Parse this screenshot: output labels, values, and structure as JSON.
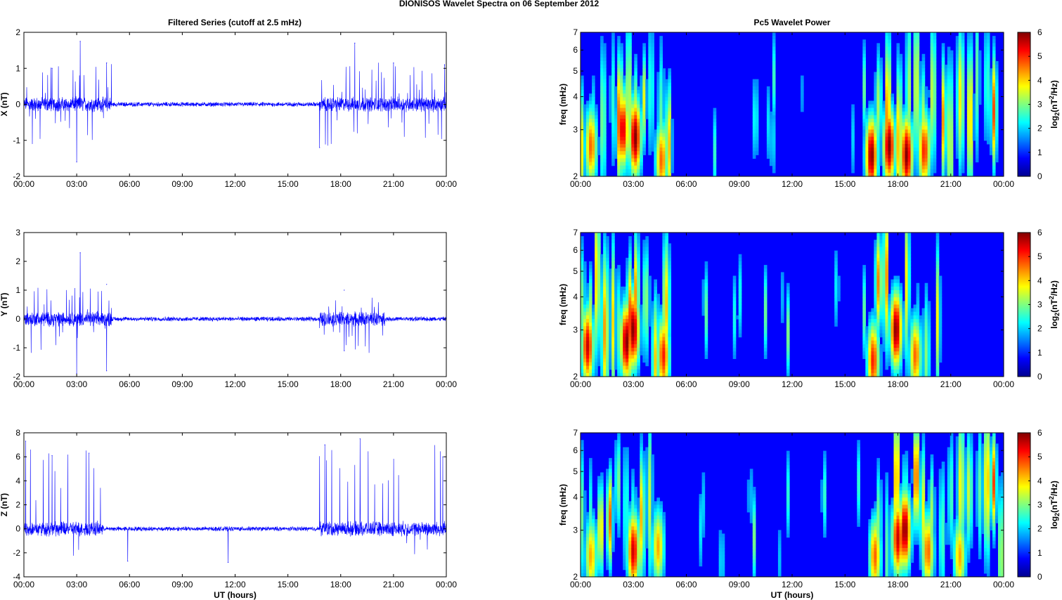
{
  "figure": {
    "suptitle": "DIONISOS Wavelet Spectra on 06 September 2012",
    "left_title": "Filtered Series (cutoff at 2.5 mHz)",
    "right_title": "Pc5 Wavelet Power",
    "xlabel": "UT (hours)",
    "time_ticks": [
      "00:00",
      "03:00",
      "06:00",
      "09:00",
      "12:00",
      "15:00",
      "18:00",
      "21:00",
      "00:00"
    ],
    "freq_ylabel": "freq (mHz)",
    "freq_ticks": [
      "2",
      "3",
      "4",
      "5",
      "6",
      "7"
    ],
    "colorbar_ticks": [
      "0",
      "1",
      "2",
      "3",
      "4",
      "5",
      "6"
    ],
    "colorbar_label": "log2(nT2/Hz)",
    "line_color": "#0000ff"
  },
  "chart_data": [
    {
      "type": "line",
      "ylabel": "X (nT)",
      "ylim": [
        -2,
        2
      ],
      "yticks": [
        "-2",
        "-1",
        "0",
        "1",
        "2"
      ],
      "xlim_hours": [
        0,
        24
      ],
      "activity_windows_hours": [
        [
          0.0,
          5.0
        ],
        [
          16.8,
          24.0
        ]
      ],
      "notable_peaks": [
        {
          "x": 1.6,
          "y": 1.0
        },
        {
          "x": 3.2,
          "y": 1.75
        },
        {
          "x": 3.0,
          "y": -1.6
        },
        {
          "x": 4.7,
          "y": 1.15
        },
        {
          "x": 16.8,
          "y": -1.2
        },
        {
          "x": 18.8,
          "y": 1.7
        },
        {
          "x": 21.0,
          "y": 1.15
        },
        {
          "x": 23.9,
          "y": 1.1
        }
      ]
    },
    {
      "type": "line",
      "ylabel": "Y (nT)",
      "ylim": [
        -2,
        3
      ],
      "yticks": [
        "-2",
        "-1",
        "0",
        "1",
        "2",
        "3"
      ],
      "xlim_hours": [
        0,
        24
      ],
      "activity_windows_hours": [
        [
          0.0,
          5.0
        ],
        [
          16.8,
          20.5
        ]
      ],
      "notable_peaks": [
        {
          "x": 3.2,
          "y": 2.3
        },
        {
          "x": 3.0,
          "y": -1.9
        },
        {
          "x": 4.7,
          "y": 1.2
        },
        {
          "x": 4.7,
          "y": -1.8
        },
        {
          "x": 18.2,
          "y": 1.0
        },
        {
          "x": 18.2,
          "y": -1.1
        }
      ]
    },
    {
      "type": "line",
      "ylabel": "Z (nT)",
      "ylim": [
        -4,
        8
      ],
      "yticks": [
        "-4",
        "-2",
        "0",
        "2",
        "4",
        "6",
        "8"
      ],
      "xlim_hours": [
        0,
        24
      ],
      "activity_windows_hours": [
        [
          0.0,
          4.5
        ],
        [
          16.8,
          24.0
        ]
      ],
      "notable_peaks": [
        {
          "x": 0.1,
          "y": 7.3
        },
        {
          "x": 1.6,
          "y": 6.1
        },
        {
          "x": 3.7,
          "y": 6.3
        },
        {
          "x": 5.9,
          "y": -2.7
        },
        {
          "x": 11.6,
          "y": -2.8
        },
        {
          "x": 17.1,
          "y": 7.0
        },
        {
          "x": 19.1,
          "y": 7.5
        },
        {
          "x": 23.8,
          "y": 6.0
        }
      ]
    },
    {
      "type": "heatmap",
      "ylabel": "freq (mHz)",
      "ylim_mhz": [
        2,
        7
      ],
      "log_y": true,
      "color_range": [
        0,
        6
      ],
      "colormap": "jet",
      "hot_blobs": [
        {
          "t": 0.6,
          "f": 2.6,
          "p": 4.5
        },
        {
          "t": 2.4,
          "f": 3.0,
          "p": 5.5
        },
        {
          "t": 3.1,
          "f": 2.8,
          "p": 6.0
        },
        {
          "t": 4.6,
          "f": 2.3,
          "p": 4.5
        },
        {
          "t": 16.5,
          "f": 2.4,
          "p": 6.0
        },
        {
          "t": 17.5,
          "f": 2.6,
          "p": 6.0
        },
        {
          "t": 18.5,
          "f": 2.4,
          "p": 6.0
        },
        {
          "t": 19.5,
          "f": 2.5,
          "p": 5.0
        }
      ]
    },
    {
      "type": "heatmap",
      "ylabel": "freq (mHz)",
      "ylim_mhz": [
        2,
        7
      ],
      "log_y": true,
      "color_range": [
        0,
        6
      ],
      "colormap": "jet",
      "hot_blobs": [
        {
          "t": 0.4,
          "f": 2.6,
          "p": 5.5
        },
        {
          "t": 2.6,
          "f": 2.7,
          "p": 6.0
        },
        {
          "t": 3.0,
          "f": 3.0,
          "p": 6.0
        },
        {
          "t": 4.7,
          "f": 2.4,
          "p": 5.0
        },
        {
          "t": 16.6,
          "f": 2.3,
          "p": 5.0
        },
        {
          "t": 17.9,
          "f": 3.0,
          "p": 6.0
        },
        {
          "t": 19.0,
          "f": 2.4,
          "p": 4.5
        }
      ]
    },
    {
      "type": "heatmap",
      "ylabel": "freq (mHz)",
      "ylim_mhz": [
        2,
        7
      ],
      "log_y": true,
      "color_range": [
        0,
        6
      ],
      "colormap": "jet",
      "hot_blobs": [
        {
          "t": 0.6,
          "f": 2.4,
          "p": 4.0
        },
        {
          "t": 3.0,
          "f": 2.5,
          "p": 5.5
        },
        {
          "t": 4.4,
          "f": 2.6,
          "p": 4.0
        },
        {
          "t": 16.7,
          "f": 2.4,
          "p": 4.5
        },
        {
          "t": 18.0,
          "f": 2.8,
          "p": 5.5
        },
        {
          "t": 18.4,
          "f": 3.0,
          "p": 6.0
        },
        {
          "t": 19.7,
          "f": 2.5,
          "p": 4.5
        },
        {
          "t": 21.5,
          "f": 2.4,
          "p": 4.0
        }
      ]
    }
  ]
}
